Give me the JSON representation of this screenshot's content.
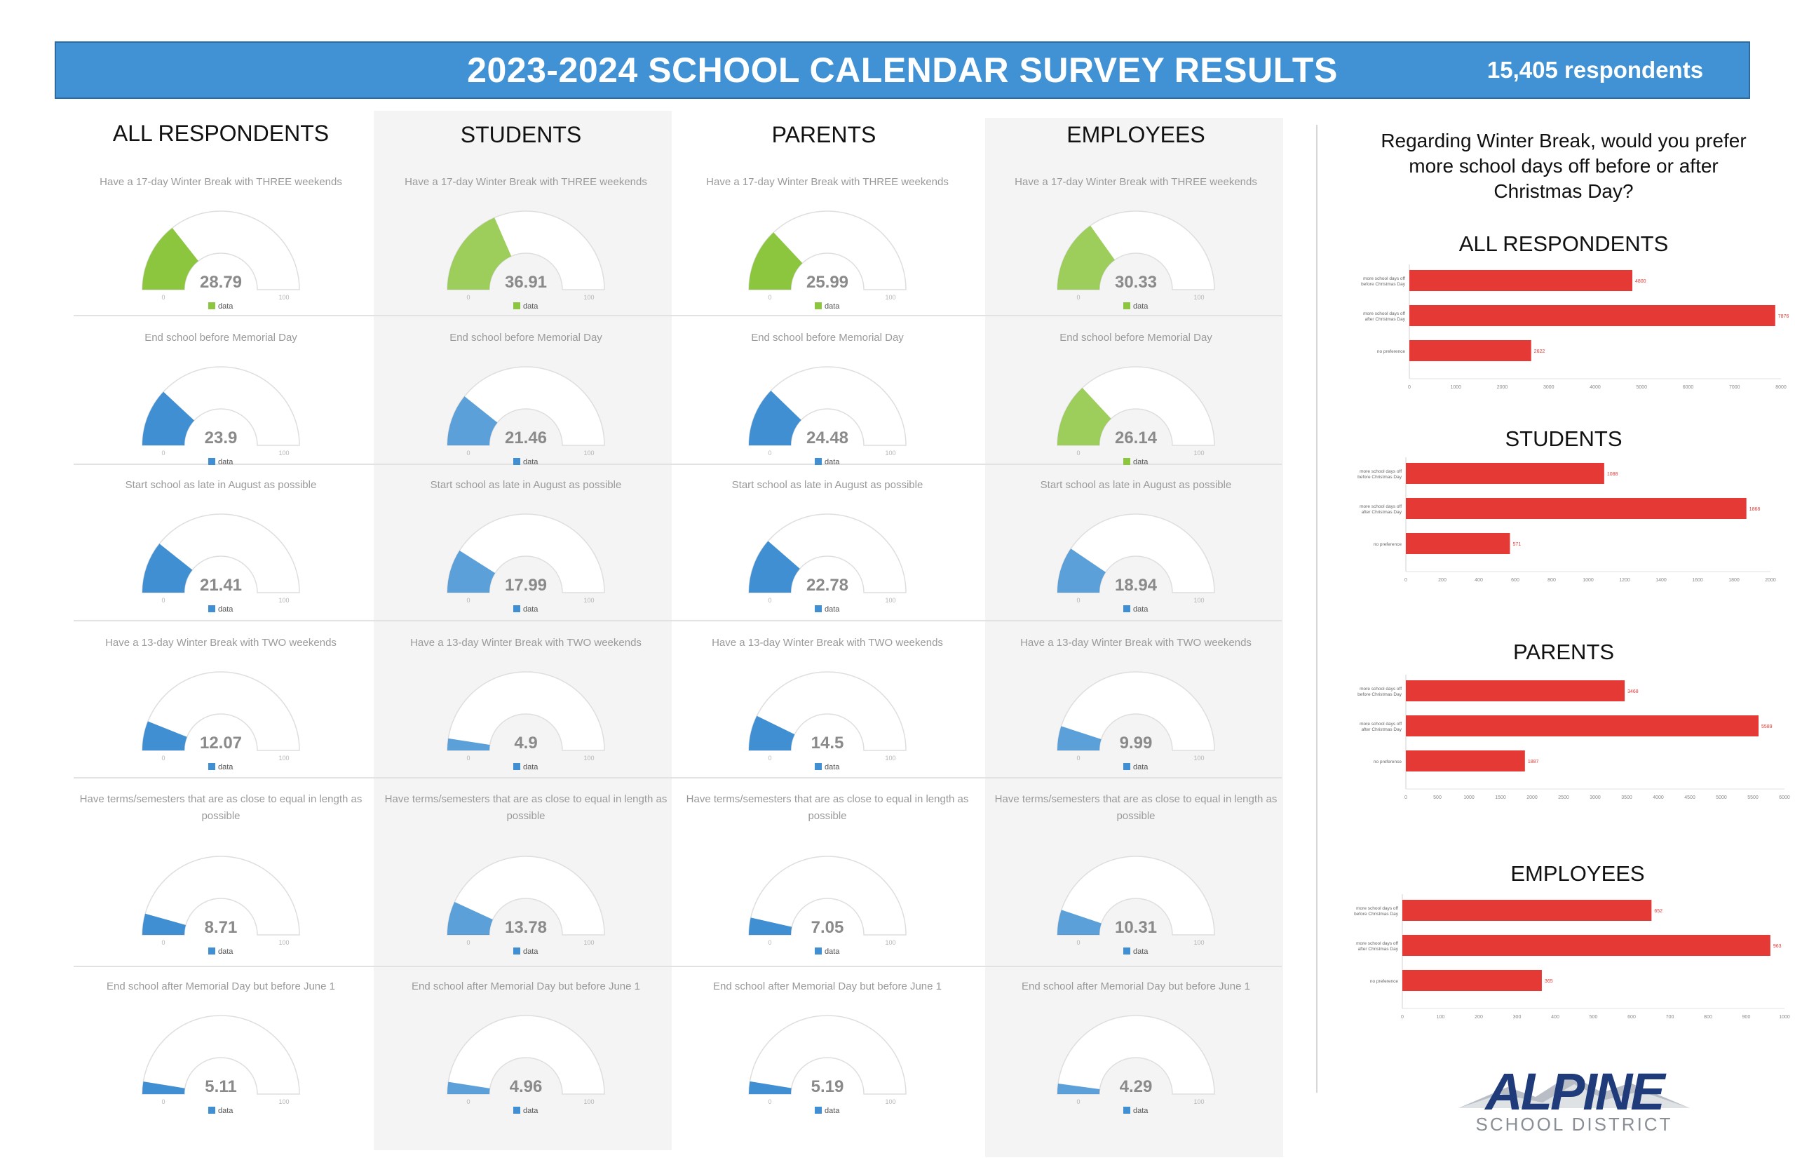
{
  "header": {
    "title": "2023-2024 SCHOOL CALENDAR SURVEY RESULTS",
    "respondents": "15,405 respondents"
  },
  "columns": [
    "ALL RESPONDENTS",
    "STUDENTS",
    "PARENTS",
    "EMPLOYEES"
  ],
  "gauge_legend": "data",
  "gauge_min": "0",
  "gauge_max": "100",
  "colors": {
    "green": "#8cc63f",
    "blue": "#3f8fd2",
    "red": "#e53935",
    "header": "#4192d4"
  },
  "chart_data": [
    {
      "type": "gauge",
      "group": "ALL RESPONDENTS",
      "range": [
        0,
        100
      ],
      "series": [
        {
          "question": "Have a 17-day Winter Break with THREE weekends",
          "value": 28.79,
          "color": "green"
        },
        {
          "question": "End school before Memorial Day",
          "value": 23.9,
          "color": "blue"
        },
        {
          "question": "Start school as late in August as possible",
          "value": 21.41,
          "color": "blue"
        },
        {
          "question": "Have a 13-day Winter Break with TWO weekends",
          "value": 12.07,
          "color": "blue"
        },
        {
          "question": "Have terms/semesters that are as close to equal in length as possible",
          "value": 8.71,
          "color": "blue"
        },
        {
          "question": "End school after Memorial Day but before June 1",
          "value": 5.11,
          "color": "blue"
        }
      ]
    },
    {
      "type": "gauge",
      "group": "STUDENTS",
      "range": [
        0,
        100
      ],
      "series": [
        {
          "question": "Have a 17-day Winter Break with THREE weekends",
          "value": 36.91,
          "color": "green"
        },
        {
          "question": "End school before Memorial Day",
          "value": 21.46,
          "color": "blue"
        },
        {
          "question": "Start school as late in August as possible",
          "value": 17.99,
          "color": "blue"
        },
        {
          "question": "Have a 13-day Winter Break with TWO weekends",
          "value": 4.9,
          "color": "blue"
        },
        {
          "question": "Have terms/semesters that are as close to equal in length as possible",
          "value": 13.78,
          "color": "blue"
        },
        {
          "question": "End school after Memorial Day but before June 1",
          "value": 4.96,
          "color": "blue"
        }
      ]
    },
    {
      "type": "gauge",
      "group": "PARENTS",
      "range": [
        0,
        100
      ],
      "series": [
        {
          "question": "Have a 17-day Winter Break with THREE weekends",
          "value": 25.99,
          "color": "green"
        },
        {
          "question": "End school before Memorial Day",
          "value": 24.48,
          "color": "blue"
        },
        {
          "question": "Start school as late in August as possible",
          "value": 22.78,
          "color": "blue"
        },
        {
          "question": "Have a 13-day Winter Break with TWO weekends",
          "value": 14.5,
          "color": "blue"
        },
        {
          "question": "Have terms/semesters that are as close to equal in length as possible",
          "value": 7.05,
          "color": "blue"
        },
        {
          "question": "End school after Memorial Day but before June 1",
          "value": 5.19,
          "color": "blue"
        }
      ]
    },
    {
      "type": "gauge",
      "group": "EMPLOYEES",
      "range": [
        0,
        100
      ],
      "series": [
        {
          "question": "Have a 17-day Winter Break with THREE weekends",
          "value": 30.33,
          "color": "green"
        },
        {
          "question": "End school before Memorial Day",
          "value": 26.14,
          "color": "green"
        },
        {
          "question": "Start school as late in August as possible",
          "value": 18.94,
          "color": "blue"
        },
        {
          "question": "Have a 13-day Winter Break with TWO weekends",
          "value": 9.99,
          "color": "blue"
        },
        {
          "question": "Have terms/semesters that are as close to equal in length as possible",
          "value": 10.31,
          "color": "blue"
        },
        {
          "question": "End school after Memorial Day but before June 1",
          "value": 4.29,
          "color": "blue"
        }
      ]
    },
    {
      "type": "bar",
      "title": "ALL RESPONDENTS",
      "categories": [
        "more school days off before Christmas Day",
        "more school days off after Christmas Day",
        "no preference"
      ],
      "values": [
        4800,
        7876,
        2622
      ],
      "xlim": [
        0,
        8000
      ],
      "xticks": [
        "0",
        "1000",
        "2000",
        "3000",
        "4000",
        "5000",
        "6000",
        "7000",
        "8000"
      ]
    },
    {
      "type": "bar",
      "title": "STUDENTS",
      "categories": [
        "more school days off before Christmas Day",
        "more school days off after Christmas Day",
        "no preference"
      ],
      "values": [
        1088,
        1868,
        571
      ],
      "xlim": [
        0,
        2000
      ],
      "xticks": [
        "0",
        "200",
        "400",
        "600",
        "800",
        "1000",
        "1200",
        "1400",
        "1600",
        "1800",
        "2000"
      ]
    },
    {
      "type": "bar",
      "title": "PARENTS",
      "categories": [
        "more school days off before Christmas Day",
        "more school days off after Christmas Day",
        "no preference"
      ],
      "values": [
        3468,
        5589,
        1887
      ],
      "xlim": [
        0,
        6000
      ],
      "xticks": [
        "0",
        "500",
        "1000",
        "1500",
        "2000",
        "2500",
        "3000",
        "3500",
        "4000",
        "4500",
        "5000",
        "5500",
        "6000"
      ]
    },
    {
      "type": "bar",
      "title": "EMPLOYEES",
      "categories": [
        "more school days off before Christmas Day",
        "more school days off after Christmas Day",
        "no preference"
      ],
      "values": [
        652,
        963,
        365
      ],
      "xlim": [
        0,
        1000
      ],
      "xticks": [
        "0",
        "100",
        "200",
        "300",
        "400",
        "500",
        "600",
        "700",
        "800",
        "900",
        "1000"
      ]
    }
  ],
  "winter_break_question": "Regarding Winter Break, would you prefer more school days off before or after Christmas Day?",
  "logo": {
    "name": "ALPINE",
    "subtitle": "SCHOOL DISTRICT"
  }
}
